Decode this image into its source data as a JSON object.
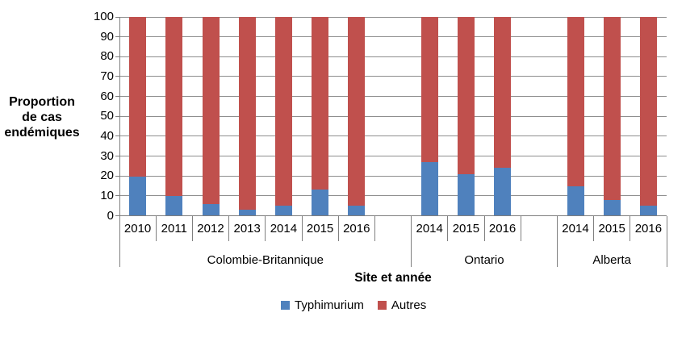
{
  "chart_data": {
    "type": "bar",
    "stacked": true,
    "orientation": "vertical",
    "ylabel": "Proportion de cas endémiques",
    "ylabel_lines": [
      "Proportion",
      "de cas",
      "endémiques"
    ],
    "xlabel": "Site et année",
    "ylim": [
      0,
      100
    ],
    "ytick_step": 10,
    "yticks": [
      0,
      10,
      20,
      30,
      40,
      50,
      60,
      70,
      80,
      90,
      100
    ],
    "grid": "horizontal",
    "legend": [
      "Typhimurium",
      "Autres"
    ],
    "legend_position": "bottom",
    "colors": {
      "typhimurium": "#4F81BD",
      "autres": "#C0504D",
      "gridline": "#8E8E8E",
      "axis": "#7F7F7F",
      "text": "#000000",
      "background": "#FFFFFF"
    },
    "groups": [
      {
        "site": "Colombie-Britannique",
        "categories": [
          "2010",
          "2011",
          "2012",
          "2013",
          "2014",
          "2015",
          "2016"
        ],
        "series": {
          "typhimurium": [
            19.5,
            10,
            6,
            3,
            5,
            13,
            5
          ],
          "autres": [
            80.5,
            90,
            94,
            97,
            95,
            87,
            95
          ]
        },
        "blank_slot_after": true
      },
      {
        "site": "Ontario",
        "categories": [
          "2014",
          "2015",
          "2016"
        ],
        "series": {
          "typhimurium": [
            27,
            21,
            24
          ],
          "autres": [
            73,
            79,
            76
          ]
        },
        "blank_slot_after": true
      },
      {
        "site": "Alberta",
        "categories": [
          "2014",
          "2015",
          "2016"
        ],
        "series": {
          "typhimurium": [
            15,
            8,
            5
          ],
          "autres": [
            85,
            92,
            95
          ]
        },
        "blank_slot_after": false
      }
    ]
  }
}
